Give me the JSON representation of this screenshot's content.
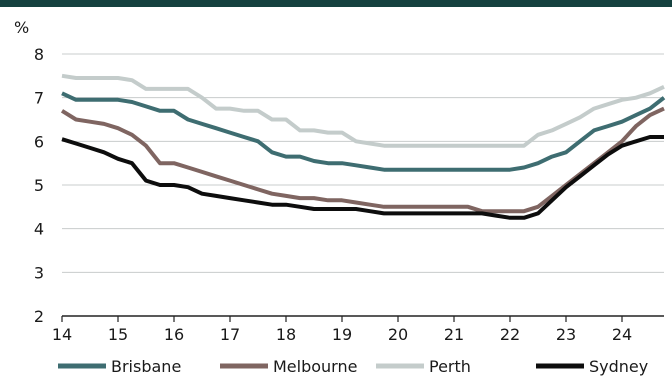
{
  "chart_data": {
    "type": "line",
    "ylabel": "%",
    "xlim": [
      14,
      24.75
    ],
    "ylim": [
      2,
      8
    ],
    "x_ticks": [
      "14",
      "15",
      "16",
      "17",
      "18",
      "19",
      "20",
      "21",
      "22",
      "23",
      "24"
    ],
    "y_ticks": [
      "2",
      "3",
      "4",
      "5",
      "6",
      "7",
      "8"
    ],
    "grid": "horizontal",
    "legend_position": "bottom",
    "series": [
      {
        "name": "Brisbane",
        "color": "#3e6d71",
        "points": [
          [
            14,
            7.1
          ],
          [
            14.25,
            6.95
          ],
          [
            14.5,
            6.95
          ],
          [
            14.75,
            6.95
          ],
          [
            15,
            6.95
          ],
          [
            15.25,
            6.9
          ],
          [
            15.5,
            6.8
          ],
          [
            15.75,
            6.7
          ],
          [
            16,
            6.7
          ],
          [
            16.25,
            6.5
          ],
          [
            16.5,
            6.4
          ],
          [
            16.75,
            6.3
          ],
          [
            17,
            6.2
          ],
          [
            17.25,
            6.1
          ],
          [
            17.5,
            6.0
          ],
          [
            17.75,
            5.75
          ],
          [
            18,
            5.65
          ],
          [
            18.25,
            5.65
          ],
          [
            18.5,
            5.55
          ],
          [
            18.75,
            5.5
          ],
          [
            19,
            5.5
          ],
          [
            19.25,
            5.45
          ],
          [
            19.5,
            5.4
          ],
          [
            19.75,
            5.35
          ],
          [
            20,
            5.35
          ],
          [
            20.5,
            5.35
          ],
          [
            21,
            5.35
          ],
          [
            21.5,
            5.35
          ],
          [
            22,
            5.35
          ],
          [
            22.25,
            5.4
          ],
          [
            22.5,
            5.5
          ],
          [
            22.75,
            5.65
          ],
          [
            23,
            5.75
          ],
          [
            23.25,
            6.0
          ],
          [
            23.5,
            6.25
          ],
          [
            23.75,
            6.35
          ],
          [
            24,
            6.45
          ],
          [
            24.25,
            6.6
          ],
          [
            24.5,
            6.75
          ],
          [
            24.75,
            7.0
          ]
        ]
      },
      {
        "name": "Melbourne",
        "color": "#7f6561",
        "points": [
          [
            14,
            6.7
          ],
          [
            14.25,
            6.5
          ],
          [
            14.5,
            6.45
          ],
          [
            14.75,
            6.4
          ],
          [
            15,
            6.3
          ],
          [
            15.25,
            6.15
          ],
          [
            15.5,
            5.9
          ],
          [
            15.75,
            5.5
          ],
          [
            16,
            5.5
          ],
          [
            16.25,
            5.4
          ],
          [
            16.5,
            5.3
          ],
          [
            16.75,
            5.2
          ],
          [
            17,
            5.1
          ],
          [
            17.25,
            5.0
          ],
          [
            17.5,
            4.9
          ],
          [
            17.75,
            4.8
          ],
          [
            18,
            4.75
          ],
          [
            18.25,
            4.7
          ],
          [
            18.5,
            4.7
          ],
          [
            18.75,
            4.65
          ],
          [
            19,
            4.65
          ],
          [
            19.25,
            4.6
          ],
          [
            19.5,
            4.55
          ],
          [
            19.75,
            4.5
          ],
          [
            20,
            4.5
          ],
          [
            20.5,
            4.5
          ],
          [
            21,
            4.5
          ],
          [
            21.25,
            4.5
          ],
          [
            21.5,
            4.4
          ],
          [
            22,
            4.4
          ],
          [
            22.25,
            4.4
          ],
          [
            22.5,
            4.5
          ],
          [
            22.75,
            4.75
          ],
          [
            23,
            5.0
          ],
          [
            23.25,
            5.25
          ],
          [
            23.5,
            5.5
          ],
          [
            23.75,
            5.75
          ],
          [
            24,
            6.0
          ],
          [
            24.25,
            6.35
          ],
          [
            24.5,
            6.6
          ],
          [
            24.75,
            6.75
          ]
        ]
      },
      {
        "name": "Perth",
        "color": "#c4cccb",
        "points": [
          [
            14,
            7.5
          ],
          [
            14.25,
            7.45
          ],
          [
            14.5,
            7.45
          ],
          [
            14.75,
            7.45
          ],
          [
            15,
            7.45
          ],
          [
            15.25,
            7.4
          ],
          [
            15.5,
            7.2
          ],
          [
            15.75,
            7.2
          ],
          [
            16,
            7.2
          ],
          [
            16.25,
            7.2
          ],
          [
            16.5,
            7.0
          ],
          [
            16.75,
            6.75
          ],
          [
            17,
            6.75
          ],
          [
            17.25,
            6.7
          ],
          [
            17.5,
            6.7
          ],
          [
            17.75,
            6.5
          ],
          [
            18,
            6.5
          ],
          [
            18.25,
            6.25
          ],
          [
            18.5,
            6.25
          ],
          [
            18.75,
            6.2
          ],
          [
            19,
            6.2
          ],
          [
            19.25,
            6.0
          ],
          [
            19.5,
            5.95
          ],
          [
            19.75,
            5.9
          ],
          [
            20,
            5.9
          ],
          [
            20.5,
            5.9
          ],
          [
            21,
            5.9
          ],
          [
            21.5,
            5.9
          ],
          [
            22,
            5.9
          ],
          [
            22.25,
            5.9
          ],
          [
            22.5,
            6.15
          ],
          [
            22.75,
            6.25
          ],
          [
            23,
            6.4
          ],
          [
            23.25,
            6.55
          ],
          [
            23.5,
            6.75
          ],
          [
            23.75,
            6.85
          ],
          [
            24,
            6.95
          ],
          [
            24.25,
            7.0
          ],
          [
            24.5,
            7.1
          ],
          [
            24.75,
            7.25
          ]
        ]
      },
      {
        "name": "Sydney",
        "color": "#0d0d0d",
        "points": [
          [
            14,
            6.05
          ],
          [
            14.25,
            5.95
          ],
          [
            14.5,
            5.85
          ],
          [
            14.75,
            5.75
          ],
          [
            15,
            5.6
          ],
          [
            15.25,
            5.5
          ],
          [
            15.5,
            5.1
          ],
          [
            15.75,
            5.0
          ],
          [
            16,
            5.0
          ],
          [
            16.25,
            4.95
          ],
          [
            16.5,
            4.8
          ],
          [
            16.75,
            4.75
          ],
          [
            17,
            4.7
          ],
          [
            17.25,
            4.65
          ],
          [
            17.5,
            4.6
          ],
          [
            17.75,
            4.55
          ],
          [
            18,
            4.55
          ],
          [
            18.25,
            4.5
          ],
          [
            18.5,
            4.45
          ],
          [
            18.75,
            4.45
          ],
          [
            19,
            4.45
          ],
          [
            19.25,
            4.45
          ],
          [
            19.5,
            4.4
          ],
          [
            19.75,
            4.35
          ],
          [
            20,
            4.35
          ],
          [
            20.5,
            4.35
          ],
          [
            21,
            4.35
          ],
          [
            21.5,
            4.35
          ],
          [
            21.75,
            4.3
          ],
          [
            22,
            4.25
          ],
          [
            22.25,
            4.25
          ],
          [
            22.5,
            4.35
          ],
          [
            22.75,
            4.65
          ],
          [
            23,
            4.95
          ],
          [
            23.25,
            5.2
          ],
          [
            23.5,
            5.45
          ],
          [
            23.75,
            5.7
          ],
          [
            24,
            5.9
          ],
          [
            24.25,
            6.0
          ],
          [
            24.5,
            6.1
          ],
          [
            24.75,
            6.1
          ]
        ]
      }
    ]
  }
}
